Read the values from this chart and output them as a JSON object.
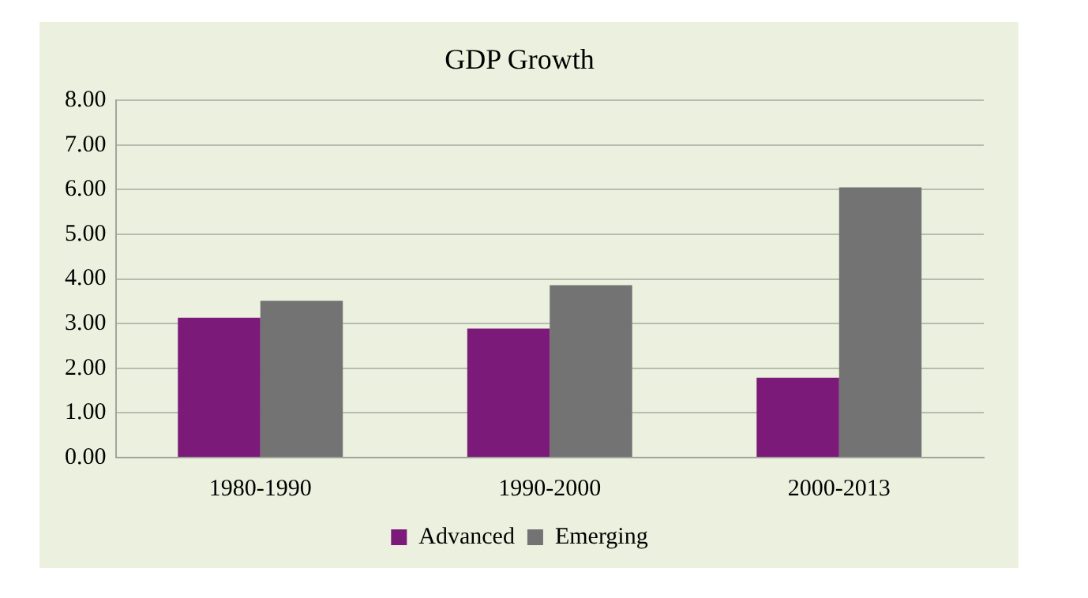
{
  "chart_data": {
    "type": "bar",
    "title": "GDP Growth",
    "categories": [
      "1980-1990",
      "1990-2000",
      "2000-2013"
    ],
    "series": [
      {
        "name": "Advanced",
        "color": "#7b1a78",
        "values": [
          3.13,
          2.89,
          1.79
        ]
      },
      {
        "name": "Emerging",
        "color": "#737373",
        "values": [
          3.51,
          3.86,
          6.05
        ]
      }
    ],
    "ylim": [
      0,
      8
    ],
    "yticks": [
      {
        "value": 0,
        "label": "0.00"
      },
      {
        "value": 1,
        "label": "1.00"
      },
      {
        "value": 2,
        "label": "2.00"
      },
      {
        "value": 3,
        "label": "3.00"
      },
      {
        "value": 4,
        "label": "4.00"
      },
      {
        "value": 5,
        "label": "5.00"
      },
      {
        "value": 6,
        "label": "6.00"
      },
      {
        "value": 7,
        "label": "7.00"
      },
      {
        "value": 8,
        "label": "8.00"
      }
    ],
    "grid": "y",
    "legend": "bottom"
  }
}
